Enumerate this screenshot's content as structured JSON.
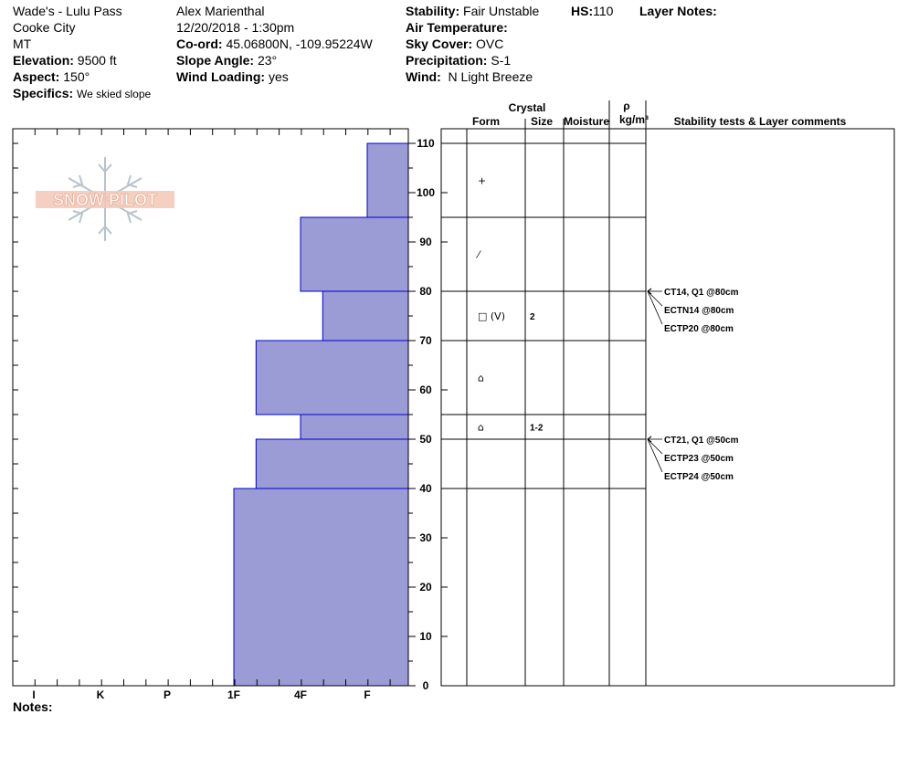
{
  "header": {
    "col1": {
      "location": "Wade's - Lulu Pass",
      "city": "Cooke City",
      "state": "MT",
      "elevation_label": "Elevation:",
      "elevation_value": "9500 ft",
      "aspect_label": "Aspect:",
      "aspect_value": "150°",
      "specifics_label": "Specifics:",
      "specifics_value": "We skied slope"
    },
    "col2": {
      "observer": "Alex Marienthal",
      "datetime": "12/20/2018 - 1:30pm",
      "coord_label": "Co-ord:",
      "coord_value": "45.06800N, -109.95224W",
      "slope_label": "Slope Angle:",
      "slope_value": "23°",
      "wind_loading_label": "Wind Loading:",
      "wind_loading_value": "yes"
    },
    "col3": {
      "stability_label": "Stability:",
      "stability_value": "Fair Unstable",
      "hs_label": "HS:",
      "hs_value": "110",
      "air_temp_label": "Air Temperature:",
      "sky_label": "Sky Cover:",
      "sky_value": "OVC",
      "precip_label": "Precipitation:",
      "precip_value": "S-1",
      "wind_label": "Wind:",
      "wind_value": "N Light Breeze"
    },
    "layer_notes_label": "Layer Notes:"
  },
  "logo_text": "SNOW PILOT",
  "notes_label": "Notes:",
  "colors": {
    "bar_fill": "#9b9bd6",
    "bar_stroke": "#0000cc",
    "logo": "#e8b4a0"
  },
  "table_headers": {
    "crystal": "Crystal",
    "form": "Form",
    "size": "Size",
    "moisture": "Moisture",
    "rho": "ρ",
    "density_unit": "kg/m³",
    "stability_tests": "Stability tests & Layer comments"
  },
  "chart_data": {
    "type": "bar",
    "orientation": "horizontal",
    "x_categories": [
      "I",
      "K",
      "P",
      "1F",
      "4F",
      "F"
    ],
    "y_ticks": [
      0,
      10,
      20,
      30,
      40,
      50,
      60,
      70,
      80,
      90,
      100,
      110
    ],
    "ylim": [
      0,
      110
    ],
    "layers": [
      {
        "bottom": 0,
        "top": 40,
        "hardness_index": 3
      },
      {
        "bottom": 40,
        "top": 50,
        "hardness_index": 3.333
      },
      {
        "bottom": 50,
        "top": 55,
        "hardness_index": 4
      },
      {
        "bottom": 55,
        "top": 70,
        "hardness_index": 3.333
      },
      {
        "bottom": 70,
        "top": 80,
        "hardness_index": 4.333
      },
      {
        "bottom": 80,
        "top": 95,
        "hardness_index": 4
      },
      {
        "bottom": 95,
        "top": 110,
        "hardness_index": 5
      }
    ],
    "layer_lines": [
      110,
      95,
      80,
      70,
      55,
      50,
      40
    ],
    "crystals": [
      {
        "height": 102.5,
        "form": "+",
        "size": ""
      },
      {
        "height": 87.5,
        "form": "⁄",
        "size": ""
      },
      {
        "height": 75,
        "form": "□ (V)",
        "size": "2"
      },
      {
        "height": 62.5,
        "form": "⌂",
        "size": ""
      },
      {
        "height": 52.5,
        "form": "⌂",
        "size": "1-2"
      }
    ],
    "stability_tests": [
      {
        "depth": 80,
        "labels": [
          "CT14, Q1 @80cm",
          "ECTN14 @80cm",
          "ECTP20 @80cm"
        ]
      },
      {
        "depth": 50,
        "labels": [
          "CT21, Q1 @50cm",
          "ECTP23 @50cm",
          "ECTP24 @50cm"
        ]
      }
    ]
  }
}
